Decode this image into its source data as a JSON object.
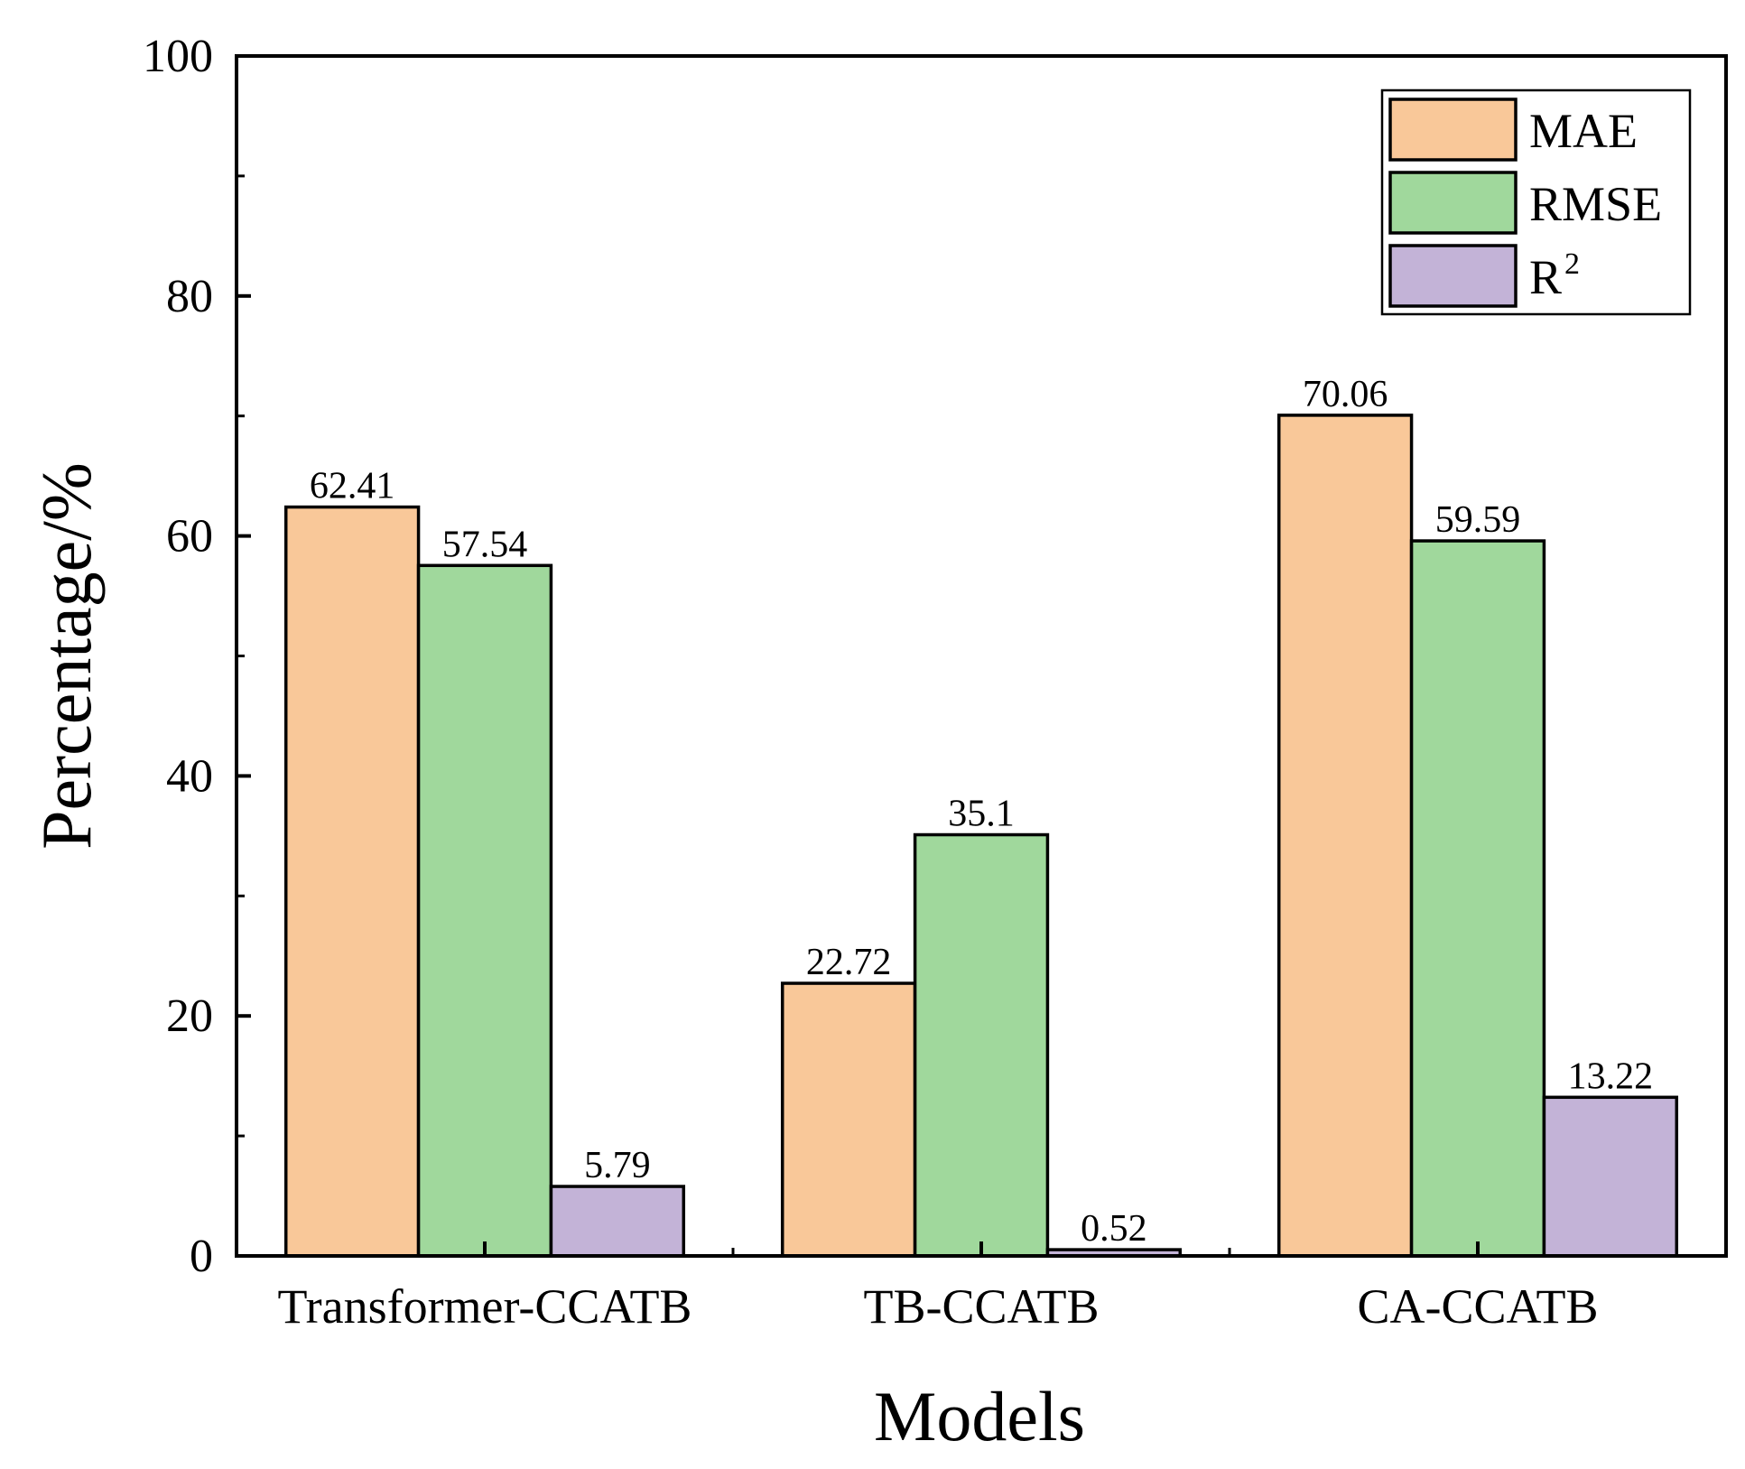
{
  "chart_data": {
    "type": "bar",
    "title": "",
    "xlabel": "Models",
    "ylabel": "Percentage/%",
    "ylim": [
      0,
      100
    ],
    "yticks": [
      0,
      20,
      40,
      60,
      80,
      100
    ],
    "ytick_labels": [
      "0",
      "20",
      "40",
      "60",
      "80",
      "100"
    ],
    "categories": [
      "Transformer-CCATB",
      "TB-CCATB",
      "CA-CCATB"
    ],
    "series": [
      {
        "name": "MAE",
        "color": "#f9c899",
        "values": [
          62.41,
          22.72,
          70.06
        ],
        "labels": [
          "62.41",
          "22.72",
          "70.06"
        ]
      },
      {
        "name": "RMSE",
        "color": "#a0d89c",
        "values": [
          57.54,
          35.1,
          59.59
        ],
        "labels": [
          "57.54",
          "35.1",
          "59.59"
        ]
      },
      {
        "name": "R",
        "name_superscript": "2",
        "color": "#c3b3d7",
        "values": [
          5.79,
          0.52,
          13.22
        ],
        "labels": [
          "5.79",
          "0.52",
          "13.22"
        ]
      }
    ],
    "legend": "top-right",
    "grid": false
  }
}
